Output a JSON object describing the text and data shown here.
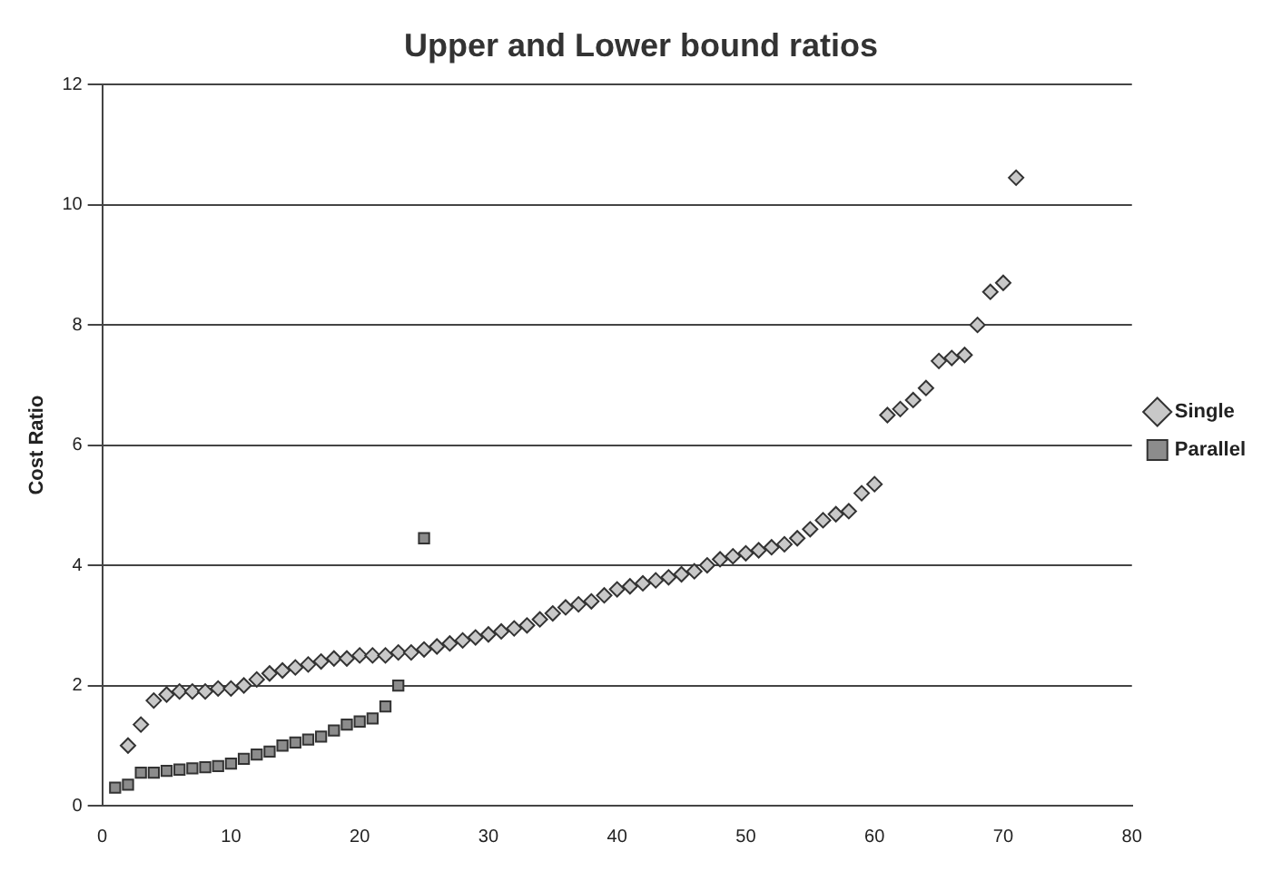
{
  "chart_data": {
    "type": "scatter",
    "title": "Upper and Lower bound ratios",
    "ylabel": "Cost Ratio",
    "xlim": [
      0,
      80
    ],
    "xticks": [
      0,
      10,
      20,
      30,
      40,
      50,
      60,
      70,
      80
    ],
    "ylim": [
      0,
      12
    ],
    "yticks": [
      0,
      2,
      4,
      6,
      8,
      10,
      12
    ],
    "grid": "y",
    "legend": "right",
    "series": [
      {
        "name": "Single",
        "color": "#c8c8c8",
        "marker": "diamond",
        "x": [
          2,
          3,
          4,
          5,
          6,
          7,
          8,
          9,
          10,
          11,
          12,
          13,
          14,
          15,
          16,
          17,
          18,
          19,
          20,
          21,
          22,
          23,
          24,
          25,
          26,
          27,
          28,
          29,
          30,
          31,
          32,
          33,
          34,
          35,
          36,
          37,
          38,
          39,
          40,
          41,
          42,
          43,
          44,
          45,
          46,
          47,
          48,
          49,
          50,
          51,
          52,
          53,
          54,
          55,
          56,
          57,
          58,
          59,
          60,
          61,
          62,
          63,
          64,
          65,
          66,
          67,
          68,
          69,
          70,
          71
        ],
        "values": [
          1.0,
          1.35,
          1.75,
          1.85,
          1.9,
          1.9,
          1.9,
          1.95,
          1.95,
          2.0,
          2.1,
          2.2,
          2.25,
          2.3,
          2.35,
          2.4,
          2.45,
          2.45,
          2.5,
          2.5,
          2.5,
          2.55,
          2.55,
          2.6,
          2.65,
          2.7,
          2.75,
          2.8,
          2.85,
          2.9,
          2.95,
          3.0,
          3.1,
          3.2,
          3.3,
          3.35,
          3.4,
          3.5,
          3.6,
          3.65,
          3.7,
          3.75,
          3.8,
          3.85,
          3.9,
          4.0,
          4.1,
          4.15,
          4.2,
          4.25,
          4.3,
          4.35,
          4.45,
          4.6,
          4.75,
          4.85,
          4.9,
          5.2,
          5.35,
          6.5,
          6.6,
          6.75,
          6.95,
          7.4,
          7.45,
          7.5,
          8.0,
          8.55,
          8.7,
          10.45
        ]
      },
      {
        "name": "Parallel",
        "color": "#8c8c8c",
        "marker": "square",
        "x": [
          1,
          2,
          3,
          4,
          5,
          6,
          7,
          8,
          9,
          10,
          11,
          12,
          13,
          14,
          15,
          16,
          17,
          18,
          19,
          20,
          21,
          22,
          23,
          24,
          25
        ],
        "values": [
          0.3,
          0.35,
          0.55,
          0.55,
          0.58,
          0.6,
          0.62,
          0.64,
          0.66,
          0.7,
          0.78,
          0.85,
          0.9,
          1.0,
          1.05,
          1.1,
          1.15,
          1.25,
          1.35,
          1.4,
          1.45,
          1.65,
          2.0,
          null,
          4.45
        ]
      }
    ]
  }
}
